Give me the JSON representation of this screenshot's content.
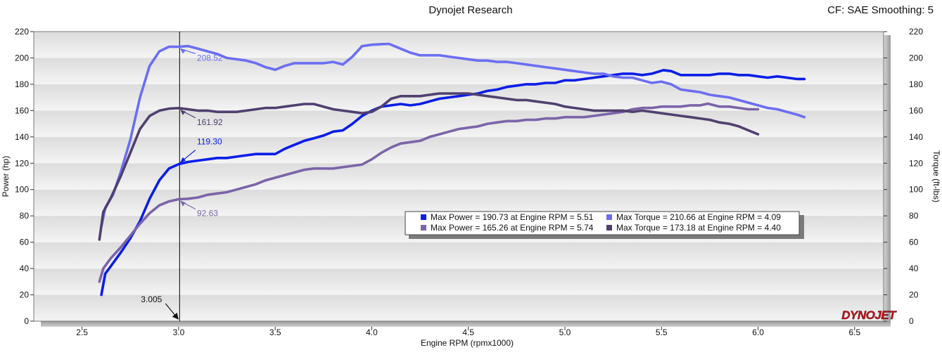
{
  "header": {
    "title": "Dynojet Research",
    "info": "CF: SAE Smoothing: 5"
  },
  "logo": {
    "text": "DYNOJET"
  },
  "colors": {
    "power_run1": "#0a1ee6",
    "torque_run1": "#6b6ef2",
    "power_run2": "#7b64a8",
    "torque_run2": "#50406e"
  },
  "chart_data": {
    "type": "line",
    "title": "Dynojet Research",
    "xlabel": "Engine RPM (rpmx1000)",
    "ylabel": "Power (hp)",
    "y2label": "Torque (ft-lbs)",
    "xlim": [
      2.25,
      6.65
    ],
    "ylim": [
      0,
      220
    ],
    "y2lim": [
      0,
      220
    ],
    "xticks": [
      "2.5",
      "3.0",
      "3.5",
      "4.0",
      "4.5",
      "5.0",
      "5.5",
      "6.0",
      "6.5"
    ],
    "yticks": [
      "0",
      "20",
      "40",
      "60",
      "80",
      "100",
      "120",
      "140",
      "160",
      "180",
      "200",
      "220"
    ],
    "grid": "horizontal bands",
    "cursor": {
      "x": 3.005,
      "label": "3.005"
    },
    "series": [
      {
        "key": "power_run1",
        "axis": "left",
        "x": [
          2.6,
          2.62,
          2.66,
          2.7,
          2.75,
          2.8,
          2.85,
          2.9,
          2.95,
          3.0,
          3.05,
          3.1,
          3.15,
          3.2,
          3.25,
          3.3,
          3.35,
          3.4,
          3.45,
          3.5,
          3.55,
          3.6,
          3.65,
          3.7,
          3.75,
          3.8,
          3.85,
          3.9,
          3.95,
          4.0,
          4.05,
          4.1,
          4.15,
          4.2,
          4.25,
          4.3,
          4.35,
          4.4,
          4.45,
          4.5,
          4.55,
          4.6,
          4.65,
          4.7,
          4.75,
          4.8,
          4.85,
          4.9,
          4.95,
          5.0,
          5.05,
          5.1,
          5.15,
          5.2,
          5.25,
          5.3,
          5.35,
          5.4,
          5.45,
          5.51,
          5.55,
          5.6,
          5.65,
          5.7,
          5.75,
          5.8,
          5.85,
          5.9,
          5.95,
          6.0,
          6.05,
          6.1,
          6.15,
          6.2,
          6.24
        ],
        "y": [
          20,
          36,
          44,
          52,
          63,
          76,
          93,
          107,
          116,
          119.3,
          121,
          122,
          123,
          124,
          124,
          125,
          126,
          127,
          127,
          127,
          131,
          134,
          137,
          139,
          141,
          144,
          145,
          150,
          156,
          160,
          163,
          164,
          165,
          164,
          165,
          167,
          169,
          170,
          171,
          172,
          173,
          175,
          176,
          178,
          179,
          180,
          180,
          181,
          181,
          183,
          183,
          184,
          185,
          186,
          187,
          188,
          188,
          187,
          188,
          190.73,
          190,
          187,
          187,
          187,
          187,
          188,
          188,
          187,
          187,
          186,
          185,
          186,
          185,
          184,
          184
        ]
      },
      {
        "key": "torque_run1",
        "axis": "right",
        "x": [
          2.6,
          2.62,
          2.66,
          2.7,
          2.75,
          2.8,
          2.85,
          2.9,
          2.95,
          3.0,
          3.05,
          3.1,
          3.15,
          3.2,
          3.25,
          3.3,
          3.35,
          3.4,
          3.45,
          3.5,
          3.55,
          3.6,
          3.65,
          3.7,
          3.75,
          3.8,
          3.85,
          3.9,
          3.95,
          4.0,
          4.05,
          4.09,
          4.15,
          4.2,
          4.25,
          4.3,
          4.35,
          4.4,
          4.45,
          4.5,
          4.55,
          4.6,
          4.65,
          4.7,
          4.75,
          4.8,
          4.85,
          4.9,
          4.95,
          5.0,
          5.05,
          5.1,
          5.15,
          5.2,
          5.25,
          5.3,
          5.35,
          5.4,
          5.45,
          5.5,
          5.55,
          5.6,
          5.65,
          5.7,
          5.75,
          5.8,
          5.85,
          5.9,
          5.95,
          6.0,
          6.05,
          6.1,
          6.15,
          6.2,
          6.24
        ],
        "y": [
          72,
          86,
          96,
          113,
          138,
          170,
          194,
          205,
          208.52,
          208.5,
          209,
          207,
          205,
          203,
          200,
          199,
          198,
          196,
          193,
          191,
          194,
          196,
          196,
          196,
          196,
          197,
          195,
          201,
          209,
          210,
          210.5,
          210.66,
          207,
          204,
          202,
          202,
          202,
          201,
          200,
          199,
          198,
          198,
          197,
          197,
          196,
          195,
          194,
          193,
          192,
          191,
          190,
          189,
          188,
          188,
          186,
          185,
          185,
          183,
          181,
          182,
          180,
          176,
          175,
          174,
          172,
          171,
          170,
          168,
          166,
          164,
          162,
          161,
          159,
          157,
          155
        ]
      },
      {
        "key": "power_run2",
        "axis": "left",
        "x": [
          2.59,
          2.61,
          2.65,
          2.7,
          2.75,
          2.8,
          2.85,
          2.9,
          2.95,
          3.0,
          3.05,
          3.1,
          3.15,
          3.2,
          3.25,
          3.3,
          3.35,
          3.4,
          3.45,
          3.5,
          3.55,
          3.6,
          3.65,
          3.7,
          3.75,
          3.8,
          3.85,
          3.9,
          3.95,
          4.0,
          4.05,
          4.1,
          4.15,
          4.2,
          4.25,
          4.3,
          4.35,
          4.4,
          4.45,
          4.5,
          4.55,
          4.6,
          4.65,
          4.7,
          4.75,
          4.8,
          4.85,
          4.9,
          4.95,
          5.0,
          5.05,
          5.1,
          5.15,
          5.2,
          5.25,
          5.3,
          5.35,
          5.4,
          5.45,
          5.5,
          5.55,
          5.6,
          5.65,
          5.7,
          5.74,
          5.8,
          5.85,
          5.9,
          5.95,
          6.0
        ],
        "y": [
          30,
          40,
          48,
          56,
          65,
          74,
          82,
          88,
          91,
          92.63,
          93,
          94,
          96,
          97,
          98,
          100,
          102,
          104,
          107,
          109,
          111,
          113,
          115,
          116,
          116,
          116,
          117,
          118,
          119,
          123,
          128,
          132,
          135,
          136,
          137,
          140,
          142,
          144,
          146,
          147,
          148,
          150,
          151,
          152,
          152,
          153,
          153,
          154,
          154,
          155,
          155,
          155,
          156,
          157,
          158,
          159,
          161,
          162,
          162,
          163,
          163,
          163,
          164,
          164,
          165.26,
          163,
          163,
          162,
          161,
          161
        ]
      },
      {
        "key": "torque_run2",
        "axis": "right",
        "x": [
          2.59,
          2.61,
          2.65,
          2.7,
          2.75,
          2.8,
          2.85,
          2.9,
          2.95,
          3.0,
          3.05,
          3.1,
          3.15,
          3.2,
          3.25,
          3.3,
          3.35,
          3.4,
          3.45,
          3.5,
          3.55,
          3.6,
          3.65,
          3.7,
          3.75,
          3.8,
          3.85,
          3.9,
          3.95,
          4.0,
          4.05,
          4.1,
          4.15,
          4.2,
          4.25,
          4.3,
          4.35,
          4.4,
          4.45,
          4.5,
          4.55,
          4.6,
          4.65,
          4.7,
          4.75,
          4.8,
          4.85,
          4.9,
          4.95,
          5.0,
          5.05,
          5.1,
          5.15,
          5.2,
          5.25,
          5.3,
          5.35,
          5.4,
          5.45,
          5.5,
          5.55,
          5.6,
          5.65,
          5.7,
          5.75,
          5.8,
          5.85,
          5.9,
          5.95,
          6.0
        ],
        "y": [
          62,
          83,
          94,
          110,
          128,
          146,
          156,
          160,
          161.5,
          161.92,
          161,
          160,
          160,
          159,
          159,
          159,
          160,
          161,
          162,
          162,
          163,
          164,
          165,
          165,
          163,
          161,
          160,
          159,
          158,
          159,
          163,
          169,
          171,
          171,
          171,
          172,
          173,
          173,
          173,
          173,
          172,
          171,
          170,
          169,
          168,
          168,
          167,
          166,
          165,
          163,
          162,
          161,
          160,
          160,
          160,
          160,
          159,
          160,
          159,
          158,
          157,
          156,
          155,
          154,
          153,
          151,
          150,
          148,
          145,
          142
        ]
      }
    ],
    "annotations": [
      {
        "series": "torque_run1",
        "x": 3.0,
        "y": 208.52,
        "label": "208.52"
      },
      {
        "series": "torque_run2",
        "x": 3.0,
        "y": 161.92,
        "label": "161.92"
      },
      {
        "series": "power_run1",
        "x": 3.0,
        "y": 119.3,
        "label": "119.30"
      },
      {
        "series": "power_run2",
        "x": 3.0,
        "y": 92.63,
        "label": "92.63"
      }
    ],
    "legend": {
      "placement": "center-right",
      "entries": [
        {
          "series": "power_run1",
          "label": "Max Power = 190.73 at Engine RPM = 5.51"
        },
        {
          "series": "torque_run1",
          "label": "Max Torque = 210.66 at Engine RPM = 4.09"
        },
        {
          "series": "power_run2",
          "label": "Max Power = 165.26 at Engine RPM = 5.74"
        },
        {
          "series": "torque_run2",
          "label": "Max Torque = 173.18 at Engine RPM = 4.40"
        }
      ]
    }
  }
}
